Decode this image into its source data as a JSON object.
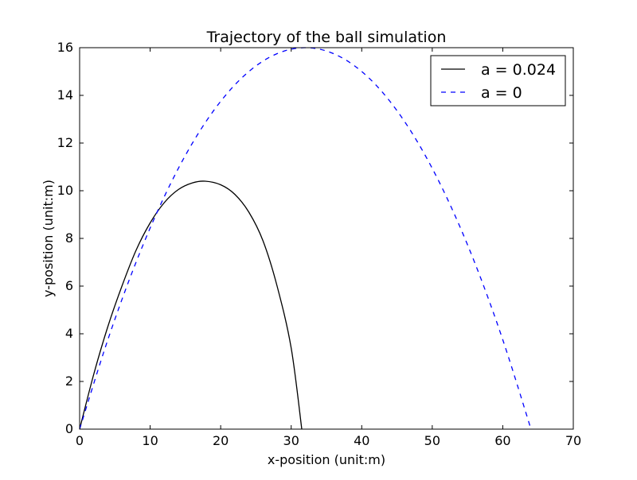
{
  "chart_data": {
    "type": "line",
    "title": "Trajectory of the ball simulation",
    "xlabel": "x-position (unit:m)",
    "ylabel": "y-position (unit:m)",
    "xlim": [
      0,
      70
    ],
    "ylim": [
      0,
      16
    ],
    "x_ticks": [
      0,
      10,
      20,
      30,
      40,
      50,
      60,
      70
    ],
    "y_ticks": [
      0,
      2,
      4,
      6,
      8,
      10,
      12,
      14,
      16
    ],
    "grid": false,
    "legend_position": "top-right",
    "series": [
      {
        "name": "a = 0.024",
        "color": "#000000",
        "line_style": "solid",
        "points": [
          [
            0,
            0
          ],
          [
            2,
            2.3
          ],
          [
            4,
            4.3
          ],
          [
            6,
            6.0
          ],
          [
            8,
            7.5
          ],
          [
            10,
            8.65
          ],
          [
            12,
            9.5
          ],
          [
            14,
            10.05
          ],
          [
            16,
            10.33
          ],
          [
            17.8,
            10.4
          ],
          [
            20,
            10.25
          ],
          [
            22,
            9.85
          ],
          [
            24,
            9.1
          ],
          [
            26,
            7.9
          ],
          [
            28,
            6.0
          ],
          [
            30,
            3.4
          ],
          [
            31.5,
            0
          ]
        ]
      },
      {
        "name": "a = 0",
        "color": "#0000ff",
        "line_style": "dashed",
        "points": [
          [
            0,
            0
          ],
          [
            4,
            3.75
          ],
          [
            8,
            7.0
          ],
          [
            12,
            9.75
          ],
          [
            16,
            12.0
          ],
          [
            20,
            13.75
          ],
          [
            24,
            15.0
          ],
          [
            28,
            15.75
          ],
          [
            32,
            16.0
          ],
          [
            36,
            15.75
          ],
          [
            40,
            15.0
          ],
          [
            44,
            13.75
          ],
          [
            48,
            12.0
          ],
          [
            52,
            9.75
          ],
          [
            56,
            7.0
          ],
          [
            60,
            3.75
          ],
          [
            64,
            0
          ]
        ]
      }
    ]
  }
}
